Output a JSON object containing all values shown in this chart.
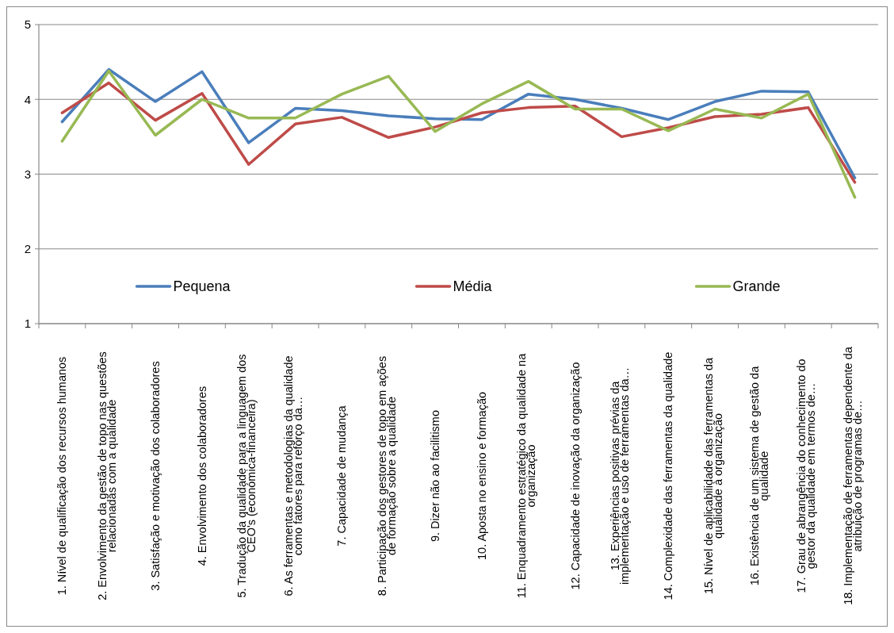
{
  "chart_data": {
    "type": "line",
    "categories": [
      "1. Nível de qualificação dos recursos humanos",
      "2. Envolvimento da gestão de topo nas questões relacionadas com a qualidade",
      "3. Satisfação e motivação dos colaboradores",
      "4. Envolvimento dos colaboradores",
      "5. Tradução da qualidade para a linguagem dos CEO's (económica-financeira)",
      "6. As ferramentas e metodologias da qualidade como fatores para reforço da…",
      "7. Capacidade de mudança",
      "8. Participação dos gestores de topo em ações de formação sobre a qualidade",
      "9. Dizer não ao facilitismo",
      "10. Aposta no ensino e formação",
      "11. Enquadramento estratégico da qualidade na organização",
      "12. Capacidade de inovação da organização",
      "13. Experiências positivas prévias da implementação e uso de ferramentas da…",
      "14. Complexidade das ferramentas da qualidade",
      "15. Nível de aplicabilidade das ferramentas da qualidade à organização",
      "16. Existência de um sistema de gestão da qualidade",
      "17. Grau de abrangência do conhecimento do gestor da qualidade em termos de…",
      "18. Implementação de ferramentas dependente da atribuição de programas de…"
    ],
    "series": [
      {
        "name": "Pequena",
        "color": "#4a7ebb",
        "values": [
          3.7,
          4.4,
          3.97,
          4.37,
          3.42,
          3.88,
          3.85,
          3.78,
          3.74,
          3.73,
          4.07,
          4.0,
          3.88,
          3.73,
          3.97,
          4.11,
          4.1,
          2.95
        ]
      },
      {
        "name": "Média",
        "color": "#be4b48",
        "values": [
          3.82,
          4.22,
          3.72,
          4.08,
          3.13,
          3.67,
          3.76,
          3.49,
          3.63,
          3.82,
          3.89,
          3.91,
          3.5,
          3.62,
          3.77,
          3.8,
          3.89,
          2.89
        ]
      },
      {
        "name": "Grande",
        "color": "#98b954",
        "values": [
          3.44,
          4.38,
          3.52,
          4.0,
          3.75,
          3.75,
          4.07,
          4.31,
          3.57,
          3.94,
          4.24,
          3.87,
          3.87,
          3.58,
          3.87,
          3.75,
          4.07,
          2.69
        ]
      }
    ],
    "ylim": [
      1,
      5
    ],
    "yticks": [
      1,
      2,
      3,
      4,
      5
    ],
    "grid": "y",
    "legend": "bottom",
    "marker": "none",
    "line_style": "solid"
  }
}
